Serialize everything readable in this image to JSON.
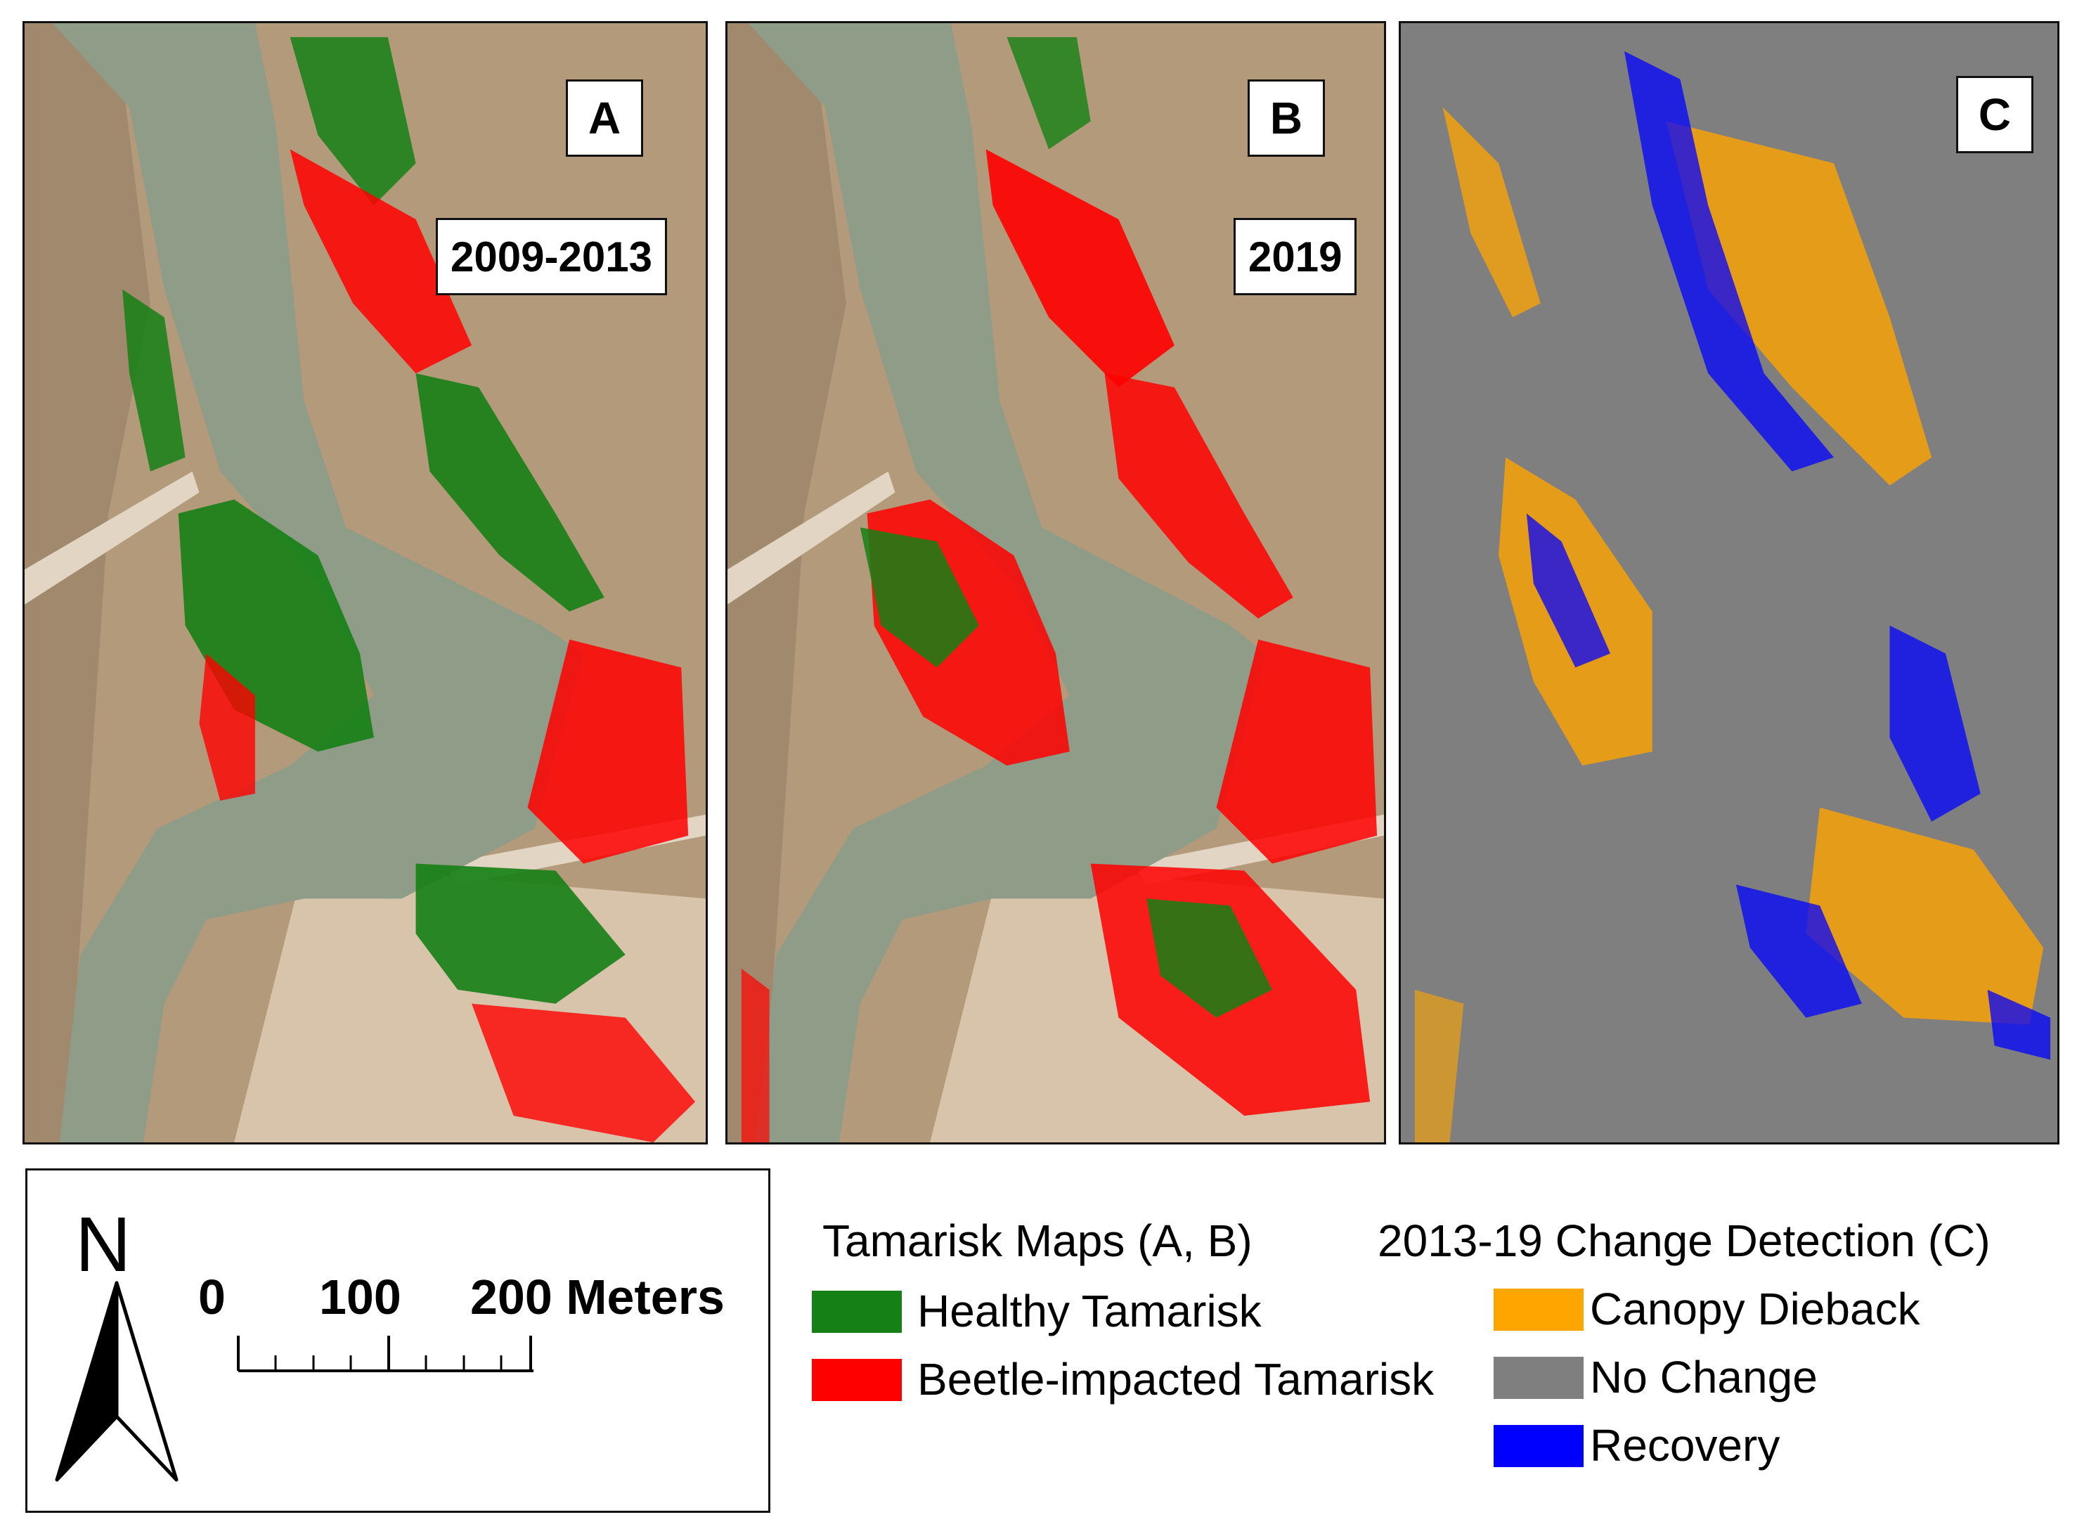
{
  "panels": {
    "a": {
      "letter": "A",
      "period": "2009-2013"
    },
    "b": {
      "letter": "B",
      "period": "2019"
    },
    "c": {
      "letter": "C"
    }
  },
  "scale": {
    "north_label": "N",
    "ticks": [
      "0",
      "100",
      "200 Meters"
    ]
  },
  "legend_maps": {
    "title": "Tamarisk Maps (A, B)",
    "items": [
      {
        "label": "Healthy Tamarisk",
        "color": "#158015"
      },
      {
        "label": "Beetle-impacted Tamarisk",
        "color": "#ff0000"
      }
    ]
  },
  "legend_change": {
    "title": "2013-19 Change Detection (C)",
    "items": [
      {
        "label": "Canopy Dieback",
        "color": "#ffa500"
      },
      {
        "label": "No Change",
        "color": "#7f7f7f"
      },
      {
        "label": "Recovery",
        "color": "#0000ff"
      }
    ]
  }
}
